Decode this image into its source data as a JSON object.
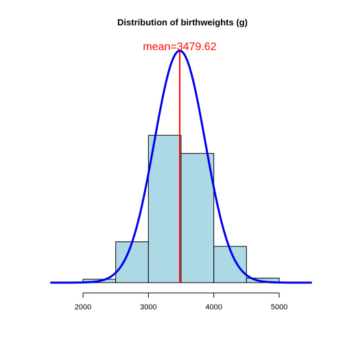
{
  "chart_data": {
    "type": "bar",
    "title": "Distribution of birthweights (g)",
    "xlabel": "",
    "ylabel": "",
    "xlim": [
      1500,
      5500
    ],
    "x_ticks": [
      2000,
      3000,
      4000,
      5000
    ],
    "x_tick_labels": [
      "2000",
      "3000",
      "4000",
      "5000"
    ],
    "bins": [
      {
        "from": 2000,
        "to": 2500,
        "density": 1.5e-05
      },
      {
        "from": 2500,
        "to": 3000,
        "density": 0.00018
      },
      {
        "from": 3000,
        "to": 3500,
        "density": 0.00065
      },
      {
        "from": 3500,
        "to": 4000,
        "density": 0.00057
      },
      {
        "from": 4000,
        "to": 4500,
        "density": 0.00016
      },
      {
        "from": 4500,
        "to": 5000,
        "density": 2e-05
      }
    ],
    "density_curve": {
      "mean": 3479.62,
      "sd": 390,
      "color": "#0000ee"
    },
    "mean_line": {
      "value": 3479.62,
      "label": "mean=3479.62",
      "color": "#ff0000"
    },
    "bar_color": "#add8e6",
    "grid": false,
    "legend": "none"
  }
}
